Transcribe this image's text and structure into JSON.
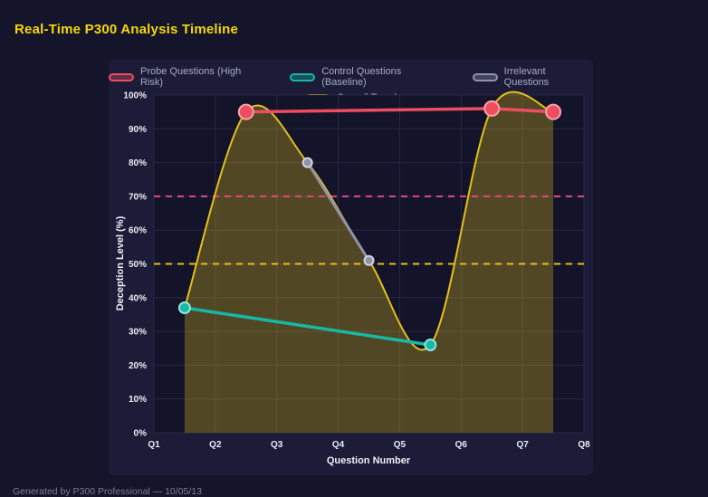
{
  "page": {
    "title": "Real-Time P300 Analysis Timeline",
    "footer": "Generated by P300 Professional — 10/05/13"
  },
  "chart_data": {
    "type": "line",
    "title": "Real-Time P300 Analysis Timeline",
    "xlabel": "Question Number",
    "ylabel": "Deception Level (%)",
    "x_ticks": [
      "Q1",
      "Q2",
      "Q3",
      "Q4",
      "Q5",
      "Q6",
      "Q7",
      "Q8"
    ],
    "x_range": [
      1,
      8
    ],
    "ylim": [
      0,
      100
    ],
    "y_tick_step": 10,
    "y_tick_suffix": "%",
    "grid": true,
    "legend_position": "top",
    "series": [
      {
        "name": "Probe Questions (High Risk)",
        "color": "#ee4d5f",
        "marker_stroke": "#f9a3aa",
        "marker_r": 8,
        "line_width": 3.5,
        "points": [
          {
            "x": 2.5,
            "y": 95
          },
          {
            "x": 6.5,
            "y": 96
          },
          {
            "x": 7.5,
            "y": 95
          }
        ]
      },
      {
        "name": "Control Questions (Baseline)",
        "color": "#17b8a6",
        "marker_stroke": "#8fe6db",
        "marker_r": 6,
        "line_width": 3.5,
        "points": [
          {
            "x": 1.5,
            "y": 37
          },
          {
            "x": 5.5,
            "y": 26
          }
        ]
      },
      {
        "name": "Irrelevant Questions",
        "color": "#8f93a8",
        "marker_stroke": "#d2d5e0",
        "marker_r": 5,
        "line_width": 3,
        "points": [
          {
            "x": 3.5,
            "y": 80
          },
          {
            "x": 4.5,
            "y": 51
          }
        ]
      },
      {
        "name": "Overall Trend",
        "color": "#e3c01b",
        "marker_r": 0,
        "line_width": 2,
        "smooth": true,
        "area": true,
        "area_opacity": 0.3,
        "points": [
          {
            "x": 1.5,
            "y": 37
          },
          {
            "x": 2.5,
            "y": 95
          },
          {
            "x": 3.5,
            "y": 80
          },
          {
            "x": 4.5,
            "y": 51
          },
          {
            "x": 5.5,
            "y": 26
          },
          {
            "x": 6.5,
            "y": 96
          },
          {
            "x": 7.5,
            "y": 95
          }
        ]
      }
    ],
    "thresholds": [
      {
        "y": 70,
        "color": "#e8477d"
      },
      {
        "y": 50,
        "color": "#e3c01b"
      }
    ],
    "legend_rows": [
      [
        0,
        1,
        2
      ],
      [
        3
      ]
    ],
    "draw_order": [
      3,
      2,
      1,
      0
    ]
  }
}
